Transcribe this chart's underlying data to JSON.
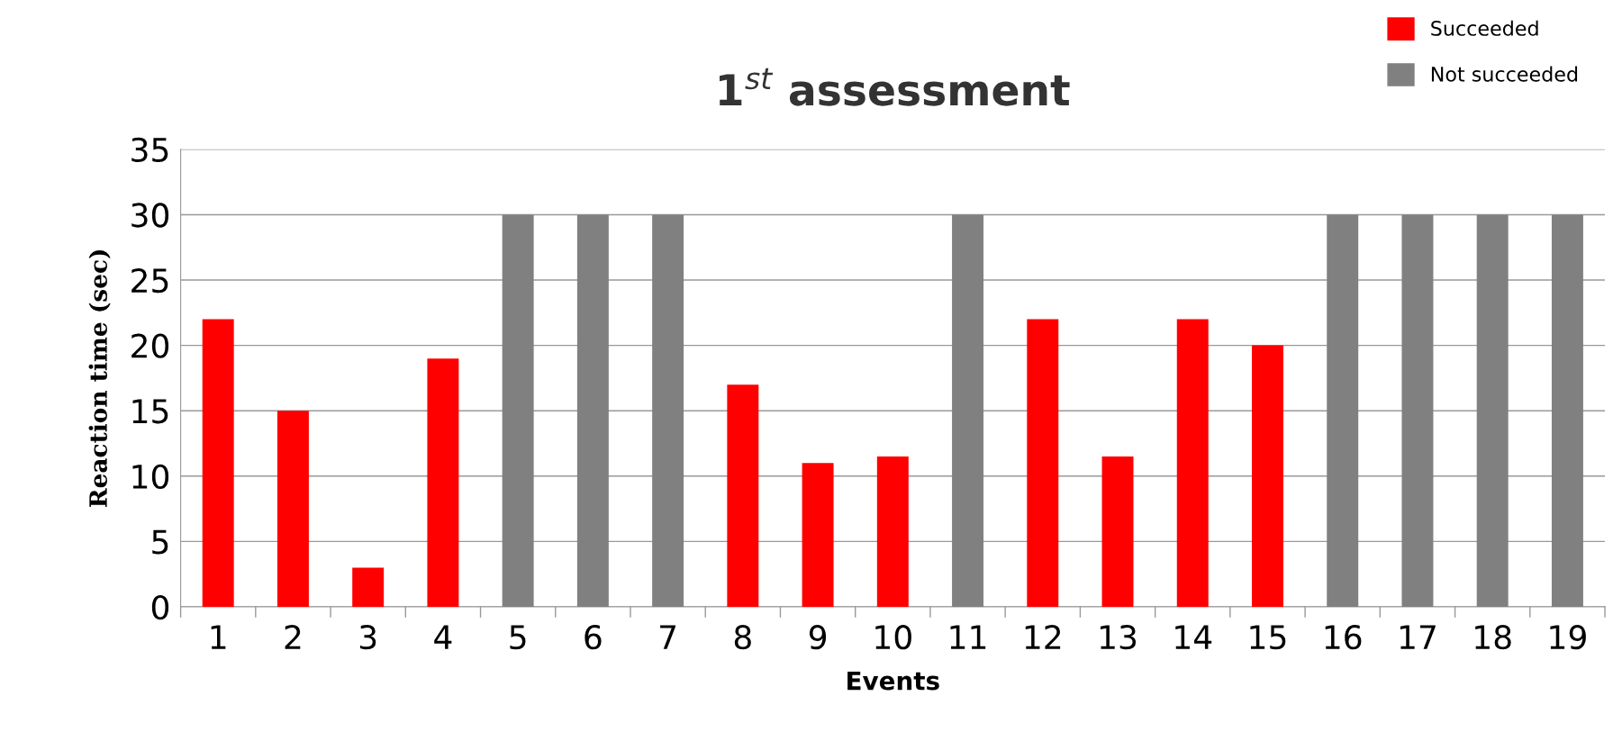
{
  "chart_data": {
    "type": "bar",
    "title": "1$^{st}$ assessment",
    "xlabel": "Events",
    "ylabel": "Reaction time (sec)",
    "categories": [
      "1",
      "2",
      "3",
      "4",
      "5",
      "6",
      "7",
      "8",
      "9",
      "10",
      "11",
      "12",
      "13",
      "14",
      "15",
      "16",
      "17",
      "18",
      "19"
    ],
    "series": [
      {
        "name": "Succeeded",
        "color": "#ff0000",
        "values": [
          22,
          15,
          3,
          19,
          null,
          null,
          null,
          17,
          11,
          11.5,
          null,
          22,
          11.5,
          22,
          20,
          null,
          null,
          null,
          null
        ]
      },
      {
        "name": "Not succeeded",
        "color": "#808080",
        "values": [
          null,
          null,
          null,
          null,
          30,
          30,
          30,
          null,
          null,
          null,
          30,
          null,
          null,
          null,
          null,
          30,
          30,
          30,
          30
        ]
      }
    ],
    "ylim": [
      0,
      35
    ],
    "yticks": [
      0,
      5,
      10,
      15,
      20,
      25,
      30,
      35
    ],
    "grid": "y",
    "legend": "top right"
  }
}
